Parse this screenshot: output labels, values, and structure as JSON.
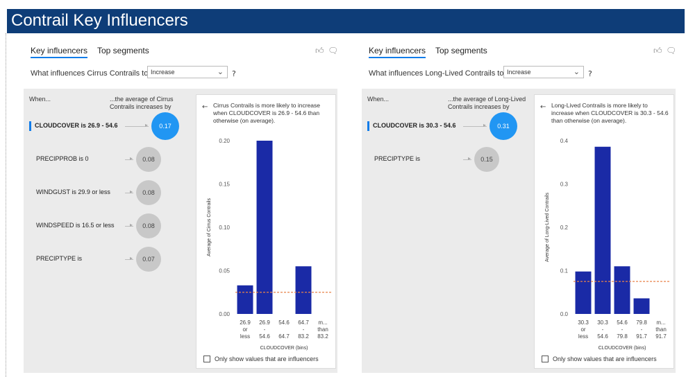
{
  "header": {
    "title": "Contrail Key Influencers"
  },
  "panels": [
    {
      "tabs": [
        "Key influencers",
        "Top segments"
      ],
      "question": "What influences Cirrus Contrails to",
      "select_value": "Increase",
      "qmark": "?",
      "when_label": "When...",
      "avg_header": [
        "...the average of Cirrus",
        "Contrails increases by"
      ],
      "influencers": [
        {
          "label": "CLOUDCOVER is 26.9 - 54.6",
          "value": "0.17",
          "selected": true
        },
        {
          "label": "PRECIPPROB is 0",
          "value": "0.08",
          "selected": false
        },
        {
          "label": "WINDGUST is 29.9 or less",
          "value": "0.08",
          "selected": false
        },
        {
          "label": "WINDSPEED is 16.5 or less",
          "value": "0.08",
          "selected": false
        },
        {
          "label": "PRECIPTYPE is",
          "value": "0.07",
          "selected": false
        }
      ],
      "detail": {
        "back_icon": "arrow-left",
        "description": "Cirrus Contrails is more likely to increase when CLOUDCOVER is 26.9 - 54.6 than otherwise (on average).",
        "checkbox_label": "Only show values that are influencers"
      },
      "chart_data": {
        "type": "bar",
        "ylabel": "Average of Cirrus Contrails",
        "xlabel": "CLOUDCOVER (bins)",
        "ylim": [
          0,
          0.2
        ],
        "yticks": [
          "0.20",
          "0.15",
          "0.10",
          "0.05",
          "0.00"
        ],
        "categories": [
          [
            "26.9",
            "or",
            "less"
          ],
          [
            "26.9",
            "-",
            "54.6"
          ],
          [
            "54.6",
            "",
            "64.7"
          ],
          [
            "64.7",
            "-",
            "83.2"
          ],
          [
            "m...",
            "than",
            "83.2"
          ]
        ],
        "values": [
          0.033,
          0.2,
          0,
          0.055,
          0
        ],
        "reference_line": 0.025,
        "bar_color": "#1a2aa6",
        "reference_color": "#e8834a"
      }
    },
    {
      "tabs": [
        "Key influencers",
        "Top segments"
      ],
      "question": "What influences Long-Lived Contrails to",
      "select_value": "Increase",
      "qmark": "?",
      "when_label": "When...",
      "avg_header": [
        "...the average of Long-Lived",
        "Contrails increases by"
      ],
      "influencers": [
        {
          "label": "CLOUDCOVER is 30.3 - 54.6",
          "value": "0.31",
          "selected": true
        },
        {
          "label": "PRECIPTYPE is",
          "value": "0.15",
          "selected": false
        }
      ],
      "detail": {
        "back_icon": "arrow-left",
        "description": "Long-Lived Contrails is more likely to increase when CLOUDCOVER is 30.3 - 54.6 than otherwise (on average).",
        "checkbox_label": "Only show values that are influencers"
      },
      "chart_data": {
        "type": "bar",
        "ylabel": "Average of Long-Lived Contrails",
        "xlabel": "CLOUDCOVER (bins)",
        "ylim": [
          0,
          0.4
        ],
        "yticks": [
          "0.4",
          "0.3",
          "0.2",
          "0.1",
          "0.0"
        ],
        "categories": [
          [
            "30.3",
            "or",
            "less"
          ],
          [
            "30.3",
            "-",
            "54.6"
          ],
          [
            "54.6",
            "-",
            "79.8"
          ],
          [
            "79.8",
            "-",
            "91.7"
          ],
          [
            "m...",
            "than",
            "91.7"
          ]
        ],
        "values": [
          0.098,
          0.386,
          0.11,
          0.036,
          0
        ],
        "reference_line": 0.075,
        "bar_color": "#1a2aa6",
        "reference_color": "#e8834a"
      }
    }
  ]
}
